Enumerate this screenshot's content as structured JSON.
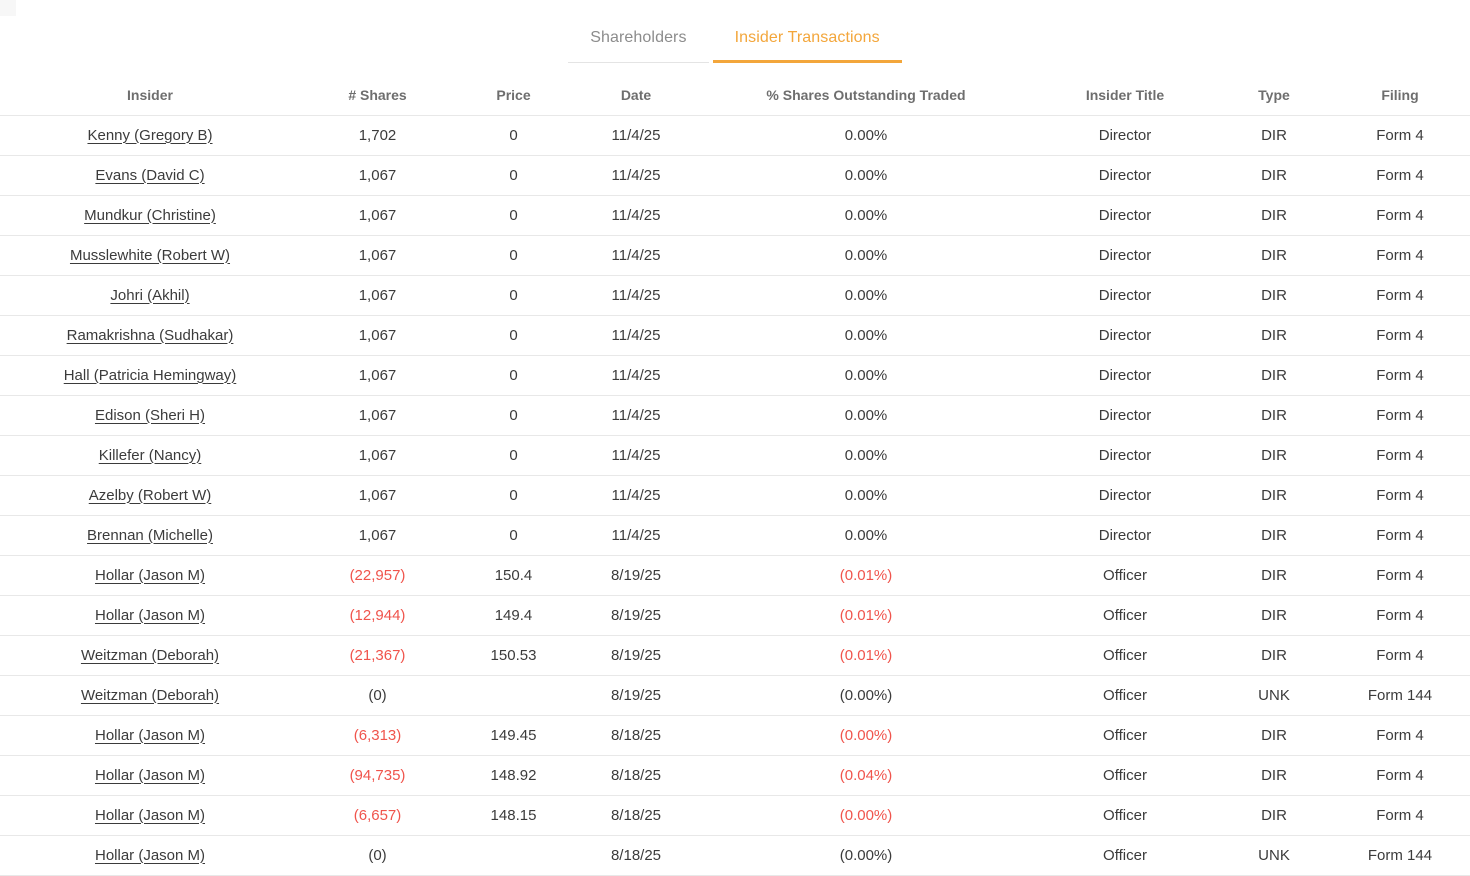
{
  "colors": {
    "accent": "#f3a63b",
    "negative": "#f0544c"
  },
  "tabs": {
    "shareholders": "Shareholders",
    "insider_transactions": "Insider Transactions",
    "active": "Insider Transactions"
  },
  "table": {
    "columns": [
      "Insider",
      "# Shares",
      "Price",
      "Date",
      "% Shares Outstanding Traded",
      "Insider Title",
      "Type",
      "Filing"
    ],
    "rows": [
      {
        "insider": "Kenny (Gregory B)",
        "shares": "1,702",
        "shares_negative": false,
        "price": "0",
        "date": "11/4/25",
        "pct": "0.00%",
        "pct_negative": false,
        "title": "Director",
        "type": "DIR",
        "filing": "Form 4"
      },
      {
        "insider": "Evans (David C)",
        "shares": "1,067",
        "shares_negative": false,
        "price": "0",
        "date": "11/4/25",
        "pct": "0.00%",
        "pct_negative": false,
        "title": "Director",
        "type": "DIR",
        "filing": "Form 4"
      },
      {
        "insider": "Mundkur (Christine)",
        "shares": "1,067",
        "shares_negative": false,
        "price": "0",
        "date": "11/4/25",
        "pct": "0.00%",
        "pct_negative": false,
        "title": "Director",
        "type": "DIR",
        "filing": "Form 4"
      },
      {
        "insider": "Musslewhite (Robert W)",
        "shares": "1,067",
        "shares_negative": false,
        "price": "0",
        "date": "11/4/25",
        "pct": "0.00%",
        "pct_negative": false,
        "title": "Director",
        "type": "DIR",
        "filing": "Form 4"
      },
      {
        "insider": "Johri (Akhil)",
        "shares": "1,067",
        "shares_negative": false,
        "price": "0",
        "date": "11/4/25",
        "pct": "0.00%",
        "pct_negative": false,
        "title": "Director",
        "type": "DIR",
        "filing": "Form 4"
      },
      {
        "insider": "Ramakrishna (Sudhakar)",
        "shares": "1,067",
        "shares_negative": false,
        "price": "0",
        "date": "11/4/25",
        "pct": "0.00%",
        "pct_negative": false,
        "title": "Director",
        "type": "DIR",
        "filing": "Form 4"
      },
      {
        "insider": "Hall (Patricia Hemingway)",
        "shares": "1,067",
        "shares_negative": false,
        "price": "0",
        "date": "11/4/25",
        "pct": "0.00%",
        "pct_negative": false,
        "title": "Director",
        "type": "DIR",
        "filing": "Form 4"
      },
      {
        "insider": "Edison (Sheri H)",
        "shares": "1,067",
        "shares_negative": false,
        "price": "0",
        "date": "11/4/25",
        "pct": "0.00%",
        "pct_negative": false,
        "title": "Director",
        "type": "DIR",
        "filing": "Form 4"
      },
      {
        "insider": "Killefer (Nancy)",
        "shares": "1,067",
        "shares_negative": false,
        "price": "0",
        "date": "11/4/25",
        "pct": "0.00%",
        "pct_negative": false,
        "title": "Director",
        "type": "DIR",
        "filing": "Form 4"
      },
      {
        "insider": "Azelby (Robert W)",
        "shares": "1,067",
        "shares_negative": false,
        "price": "0",
        "date": "11/4/25",
        "pct": "0.00%",
        "pct_negative": false,
        "title": "Director",
        "type": "DIR",
        "filing": "Form 4"
      },
      {
        "insider": "Brennan (Michelle)",
        "shares": "1,067",
        "shares_negative": false,
        "price": "0",
        "date": "11/4/25",
        "pct": "0.00%",
        "pct_negative": false,
        "title": "Director",
        "type": "DIR",
        "filing": "Form 4"
      },
      {
        "insider": "Hollar (Jason M)",
        "shares": "(22,957)",
        "shares_negative": true,
        "price": "150.4",
        "date": "8/19/25",
        "pct": "(0.01%)",
        "pct_negative": true,
        "title": "Officer",
        "type": "DIR",
        "filing": "Form 4"
      },
      {
        "insider": "Hollar (Jason M)",
        "shares": "(12,944)",
        "shares_negative": true,
        "price": "149.4",
        "date": "8/19/25",
        "pct": "(0.01%)",
        "pct_negative": true,
        "title": "Officer",
        "type": "DIR",
        "filing": "Form 4"
      },
      {
        "insider": "Weitzman (Deborah)",
        "shares": "(21,367)",
        "shares_negative": true,
        "price": "150.53",
        "date": "8/19/25",
        "pct": "(0.01%)",
        "pct_negative": true,
        "title": "Officer",
        "type": "DIR",
        "filing": "Form 4"
      },
      {
        "insider": "Weitzman (Deborah)",
        "shares": "(0)",
        "shares_negative": false,
        "price": "",
        "date": "8/19/25",
        "pct": "(0.00%)",
        "pct_negative": false,
        "title": "Officer",
        "type": "UNK",
        "filing": "Form 144"
      },
      {
        "insider": "Hollar (Jason M)",
        "shares": "(6,313)",
        "shares_negative": true,
        "price": "149.45",
        "date": "8/18/25",
        "pct": "(0.00%)",
        "pct_negative": true,
        "title": "Officer",
        "type": "DIR",
        "filing": "Form 4"
      },
      {
        "insider": "Hollar (Jason M)",
        "shares": "(94,735)",
        "shares_negative": true,
        "price": "148.92",
        "date": "8/18/25",
        "pct": "(0.04%)",
        "pct_negative": true,
        "title": "Officer",
        "type": "DIR",
        "filing": "Form 4"
      },
      {
        "insider": "Hollar (Jason M)",
        "shares": "(6,657)",
        "shares_negative": true,
        "price": "148.15",
        "date": "8/18/25",
        "pct": "(0.00%)",
        "pct_negative": true,
        "title": "Officer",
        "type": "DIR",
        "filing": "Form 4"
      },
      {
        "insider": "Hollar (Jason M)",
        "shares": "(0)",
        "shares_negative": false,
        "price": "",
        "date": "8/18/25",
        "pct": "(0.00%)",
        "pct_negative": false,
        "title": "Officer",
        "type": "UNK",
        "filing": "Form 144"
      }
    ]
  }
}
